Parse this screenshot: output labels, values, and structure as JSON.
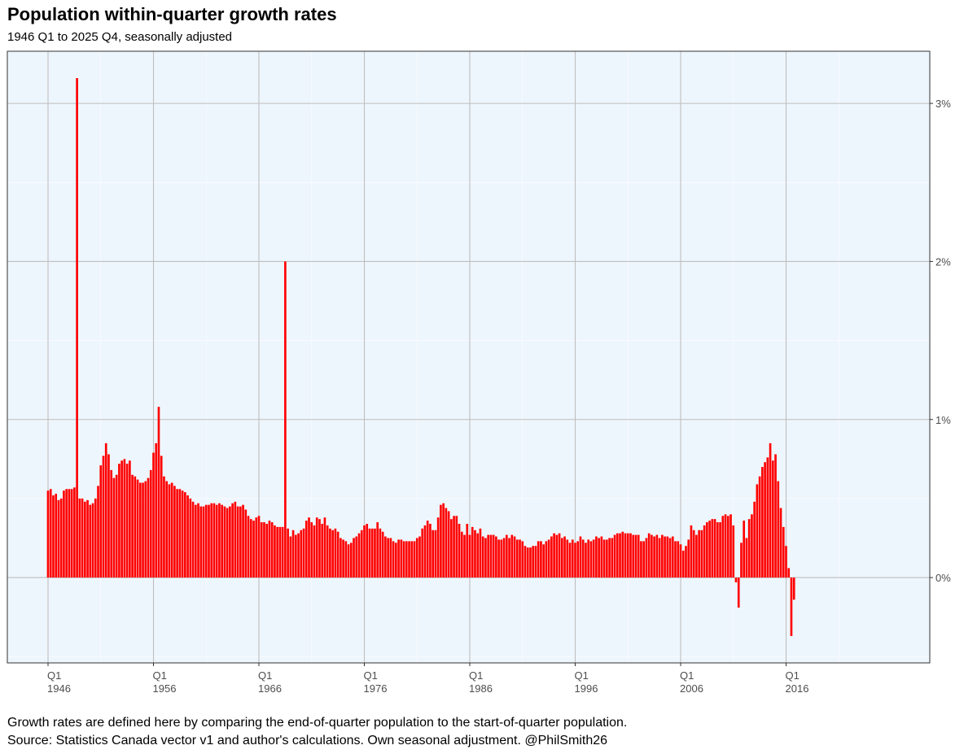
{
  "chart_data": {
    "type": "bar",
    "title": "Population within-quarter growth rates",
    "subtitle": "1946 Q1 to 2025 Q4, seasonally adjusted",
    "xlabel": "",
    "ylabel": "",
    "x_ticks": [
      {
        "quarter": "Q1",
        "year": "1946"
      },
      {
        "quarter": "Q1",
        "year": "1956"
      },
      {
        "quarter": "Q1",
        "year": "1966"
      },
      {
        "quarter": "Q1",
        "year": "1976"
      },
      {
        "quarter": "Q1",
        "year": "1986"
      },
      {
        "quarter": "Q1",
        "year": "1996"
      },
      {
        "quarter": "Q1",
        "year": "2006"
      },
      {
        "quarter": "Q1",
        "year": "2016"
      }
    ],
    "y_ticks": [
      "0%",
      "1%",
      "2%",
      "3%"
    ],
    "ylim": [
      -0.54,
      3.33
    ],
    "start_year": 1946,
    "start_quarter": 1,
    "bar_color": "#ff0000",
    "panel_color": "#eef6fd",
    "grid_color": "#bebebe",
    "unit": "percent per quarter",
    "values": [
      0.55,
      0.56,
      0.52,
      0.53,
      0.49,
      0.5,
      0.55,
      0.56,
      0.56,
      0.56,
      0.57,
      3.16,
      0.5,
      0.5,
      0.48,
      0.49,
      0.46,
      0.47,
      0.5,
      0.58,
      0.71,
      0.77,
      0.85,
      0.78,
      0.68,
      0.63,
      0.65,
      0.72,
      0.74,
      0.75,
      0.72,
      0.74,
      0.65,
      0.64,
      0.62,
      0.6,
      0.6,
      0.61,
      0.63,
      0.68,
      0.79,
      0.85,
      1.08,
      0.77,
      0.64,
      0.61,
      0.59,
      0.6,
      0.58,
      0.56,
      0.56,
      0.55,
      0.54,
      0.52,
      0.5,
      0.48,
      0.46,
      0.47,
      0.45,
      0.45,
      0.46,
      0.46,
      0.47,
      0.47,
      0.46,
      0.47,
      0.46,
      0.45,
      0.44,
      0.45,
      0.47,
      0.48,
      0.45,
      0.45,
      0.46,
      0.43,
      0.39,
      0.37,
      0.36,
      0.38,
      0.39,
      0.35,
      0.35,
      0.34,
      0.36,
      0.35,
      0.33,
      0.32,
      0.32,
      0.32,
      2.0,
      0.31,
      0.26,
      0.3,
      0.27,
      0.28,
      0.3,
      0.31,
      0.36,
      0.38,
      0.35,
      0.33,
      0.38,
      0.37,
      0.34,
      0.38,
      0.33,
      0.31,
      0.3,
      0.31,
      0.29,
      0.25,
      0.24,
      0.23,
      0.21,
      0.22,
      0.25,
      0.26,
      0.28,
      0.3,
      0.33,
      0.34,
      0.31,
      0.31,
      0.31,
      0.35,
      0.31,
      0.29,
      0.26,
      0.25,
      0.25,
      0.23,
      0.22,
      0.24,
      0.24,
      0.23,
      0.23,
      0.23,
      0.23,
      0.23,
      0.25,
      0.26,
      0.31,
      0.33,
      0.36,
      0.34,
      0.3,
      0.3,
      0.38,
      0.46,
      0.47,
      0.44,
      0.42,
      0.37,
      0.39,
      0.39,
      0.34,
      0.29,
      0.27,
      0.34,
      0.27,
      0.32,
      0.3,
      0.28,
      0.31,
      0.26,
      0.25,
      0.27,
      0.27,
      0.27,
      0.26,
      0.24,
      0.24,
      0.25,
      0.27,
      0.25,
      0.27,
      0.26,
      0.24,
      0.24,
      0.23,
      0.2,
      0.19,
      0.19,
      0.2,
      0.2,
      0.23,
      0.23,
      0.21,
      0.23,
      0.24,
      0.26,
      0.28,
      0.27,
      0.28,
      0.25,
      0.26,
      0.24,
      0.22,
      0.24,
      0.22,
      0.23,
      0.26,
      0.24,
      0.22,
      0.24,
      0.23,
      0.24,
      0.26,
      0.25,
      0.26,
      0.24,
      0.24,
      0.25,
      0.25,
      0.27,
      0.28,
      0.28,
      0.29,
      0.28,
      0.28,
      0.28,
      0.27,
      0.27,
      0.27,
      0.23,
      0.23,
      0.25,
      0.28,
      0.27,
      0.26,
      0.27,
      0.25,
      0.27,
      0.26,
      0.26,
      0.25,
      0.26,
      0.23,
      0.23,
      0.21,
      0.17,
      0.2,
      0.24,
      0.33,
      0.3,
      0.27,
      0.3,
      0.3,
      0.33,
      0.35,
      0.36,
      0.37,
      0.37,
      0.35,
      0.35,
      0.39,
      0.4,
      0.39,
      0.4,
      0.33,
      -0.03,
      -0.19,
      0.22,
      0.36,
      0.25,
      0.37,
      0.4,
      0.48,
      0.59,
      0.64,
      0.7,
      0.73,
      0.76,
      0.85,
      0.74,
      0.78,
      0.61,
      0.44,
      0.32,
      0.2,
      0.06,
      -0.37,
      -0.14
    ]
  },
  "captions": {
    "line1": "Growth rates are defined here by comparing the end-of-quarter population to the start-of-quarter population.",
    "line2": "Source: Statistics Canada vector v1 and author's calculations. Own seasonal adjustment. @PhilSmith26"
  }
}
